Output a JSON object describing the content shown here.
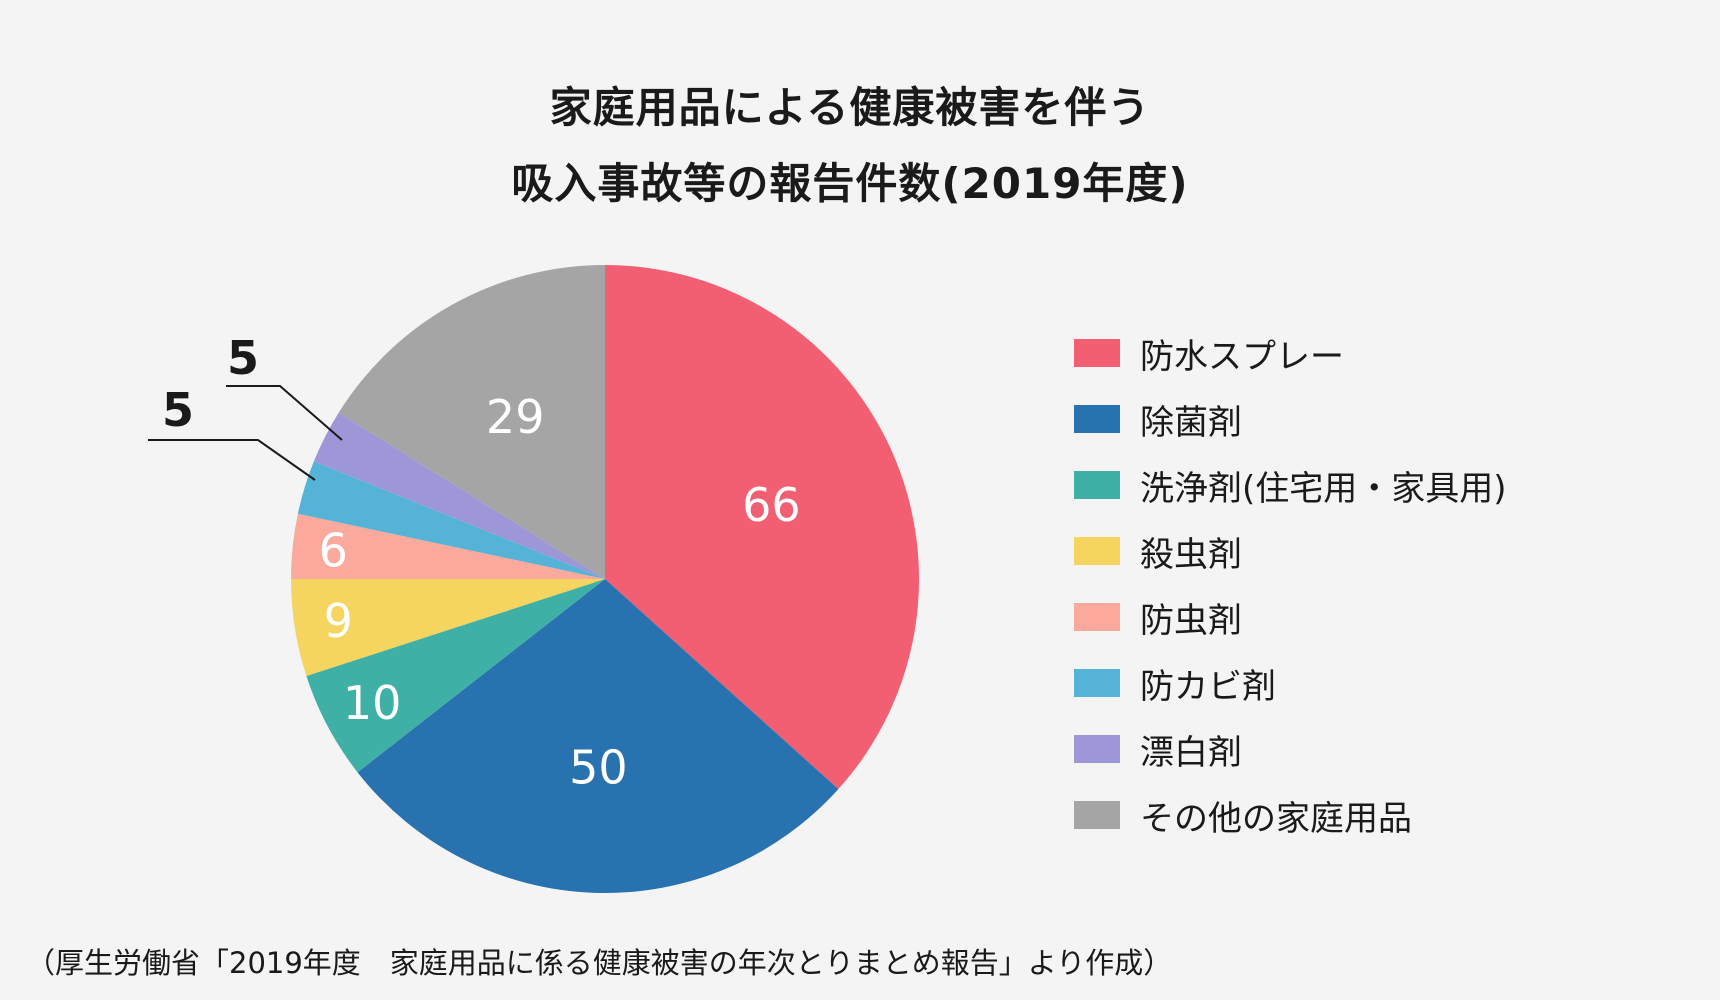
{
  "chart_data": {
    "type": "pie",
    "title_lines": [
      "家庭用品による健康被害を伴う",
      "吸入事故等の報告件数(2019年度)"
    ],
    "start": "12 o'clock",
    "direction": "clockwise",
    "slices": [
      {
        "label": "防水スプレー",
        "value": 66,
        "color": "#f25f72",
        "value_label": "66"
      },
      {
        "label": "除菌剤",
        "value": 50,
        "color": "#2872b0",
        "value_label": "50"
      },
      {
        "label": "洗浄剤(住宅用・家具用)",
        "value": 10,
        "color": "#3eb0a5",
        "value_label": "10"
      },
      {
        "label": "殺虫剤",
        "value": 9,
        "color": "#f5d45f",
        "value_label": "9"
      },
      {
        "label": "防虫剤",
        "value": 6,
        "color": "#fba99c",
        "value_label": "6"
      },
      {
        "label": "防カビ剤",
        "value": 5,
        "color": "#56b3d8",
        "value_label": "5"
      },
      {
        "label": "漂白剤",
        "value": 5,
        "color": "#9d97d7",
        "value_label": "5"
      },
      {
        "label": "その他の家庭用品",
        "value": 29,
        "color": "#a5a5a5",
        "value_label": "29"
      }
    ],
    "legend_position": "right",
    "source": "（厚生労働省「2019年度　家庭用品に係る健康被害の年次とりまとめ報告」より作成）"
  }
}
